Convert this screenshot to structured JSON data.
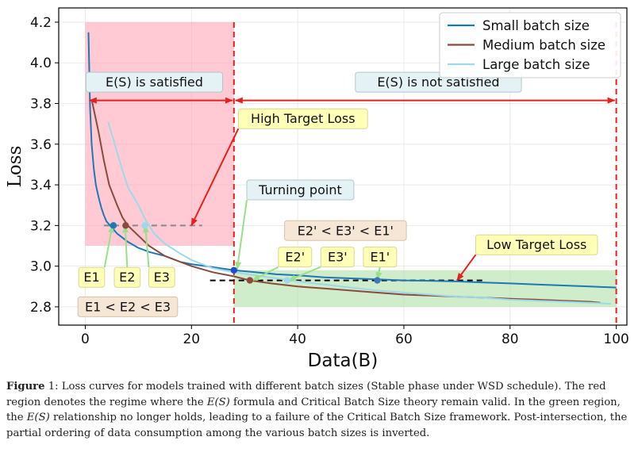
{
  "chart_data": {
    "type": "line",
    "xlabel": "Data(B)",
    "ylabel": "Loss",
    "xlim": [
      -5,
      102
    ],
    "ylim": [
      2.71,
      4.27
    ],
    "xticks": [
      0,
      20,
      40,
      60,
      80,
      100
    ],
    "yticks": [
      2.8,
      3.0,
      3.2,
      3.4,
      3.6,
      3.8,
      4.0,
      4.2
    ],
    "ytick_labels": [
      "2.8",
      "3.0",
      "3.2",
      "3.4",
      "3.6",
      "3.8",
      "4.0",
      "4.2"
    ],
    "grid": true,
    "legend_position": "top-right",
    "series": [
      {
        "name": "Small batch size",
        "color": "#1f77b4",
        "x": [
          0.6,
          0.9,
          1.2,
          1.6,
          2,
          2.5,
          3,
          3.5,
          4,
          5,
          6,
          7,
          8,
          10,
          12,
          15,
          18,
          20,
          24,
          28,
          32,
          36,
          40,
          45,
          50,
          55,
          60,
          65,
          70,
          75,
          80,
          85,
          90,
          95,
          100
        ],
        "y": [
          4.15,
          3.78,
          3.6,
          3.48,
          3.4,
          3.34,
          3.29,
          3.25,
          3.22,
          3.19,
          3.16,
          3.14,
          3.12,
          3.09,
          3.07,
          3.05,
          3.02,
          3.01,
          2.995,
          2.98,
          2.97,
          2.96,
          2.955,
          2.945,
          2.94,
          2.935,
          2.93,
          2.928,
          2.925,
          2.92,
          2.915,
          2.91,
          2.905,
          2.9,
          2.895
        ]
      },
      {
        "name": "Medium batch size",
        "color": "#8c4a3c",
        "x": [
          1.2,
          2.5,
          3.5,
          4.5,
          6,
          7,
          8,
          10,
          12,
          15,
          18,
          20,
          24,
          28,
          31,
          35,
          40,
          45,
          50,
          55,
          60,
          65,
          70,
          75,
          80,
          85,
          90,
          95,
          97
        ],
        "y": [
          3.82,
          3.66,
          3.52,
          3.4,
          3.3,
          3.24,
          3.2,
          3.15,
          3.1,
          3.05,
          3.02,
          3.0,
          2.97,
          2.95,
          2.93,
          2.915,
          2.9,
          2.89,
          2.88,
          2.87,
          2.86,
          2.855,
          2.85,
          2.845,
          2.84,
          2.835,
          2.83,
          2.825,
          2.82
        ]
      },
      {
        "name": "Large batch size",
        "color": "#9dd9ea",
        "x": [
          4.3,
          5,
          6,
          7,
          8,
          10,
          11.5,
          13,
          15,
          18,
          20,
          24,
          28,
          32,
          36,
          40,
          45,
          50,
          55,
          60,
          65,
          70,
          75,
          80,
          85,
          90,
          95,
          99
        ],
        "y": [
          3.71,
          3.65,
          3.56,
          3.47,
          3.39,
          3.3,
          3.22,
          3.16,
          3.11,
          3.06,
          3.03,
          2.99,
          2.97,
          2.955,
          2.94,
          2.925,
          2.91,
          2.895,
          2.88,
          2.87,
          2.86,
          2.85,
          2.845,
          2.835,
          2.83,
          2.825,
          2.82,
          2.815
        ]
      }
    ],
    "points": [
      {
        "x": 5.3,
        "y": 3.2,
        "color": "#1f77b4"
      },
      {
        "x": 7.6,
        "y": 3.2,
        "color": "#8c4a3c"
      },
      {
        "x": 11.2,
        "y": 3.2,
        "color": "#9dd9ea"
      },
      {
        "x": 28.0,
        "y": 2.98,
        "color": "#1f4fcf"
      },
      {
        "x": 31.0,
        "y": 2.93,
        "color": "#8c4a3c"
      },
      {
        "x": 38.0,
        "y": 2.93,
        "color": "#9dd9ea"
      },
      {
        "x": 55.0,
        "y": 2.93,
        "color": "#3a7ab8"
      }
    ],
    "regions": [
      {
        "name": "red",
        "x0": 0,
        "x1": 28,
        "y0": 3.1,
        "y1": 4.2,
        "color": "#ff9fb0",
        "opacity": 0.55
      },
      {
        "name": "green",
        "x0": 28,
        "x1": 100,
        "y0": 2.8,
        "y1": 2.98,
        "color": "#a8dca0",
        "opacity": 0.55
      }
    ],
    "vlines": [
      28,
      100
    ],
    "hlines": [
      {
        "x0": 3.5,
        "x1": 22,
        "y": 3.2,
        "color": "#888888"
      },
      {
        "x0": 23.5,
        "x1": 75,
        "y": 2.93,
        "color": "#000000"
      }
    ],
    "arrows": [
      {
        "name": "satisfied-arrow",
        "x0": 0.5,
        "x1": 28,
        "y": 3.815
      },
      {
        "name": "not-satisfied-arrow",
        "x0": 28,
        "x1": 100,
        "y": 3.815
      }
    ],
    "annotations": [
      {
        "name": "label-satisfied",
        "text": "E(S) is satisfied",
        "x": 13,
        "y": 3.905,
        "style": "blue"
      },
      {
        "name": "label-not-satisfied",
        "text": "E(S) is not satisfied",
        "x": 66.5,
        "y": 3.905,
        "style": "blue"
      },
      {
        "name": "label-high-target",
        "text": "High Target Loss",
        "x": 41,
        "y": 3.725,
        "style": "yellow",
        "arrow": {
          "x": 20,
          "y": 3.2,
          "color": "#e8201c"
        }
      },
      {
        "name": "label-turning-point",
        "text": "Turning point",
        "x": 40.5,
        "y": 3.375,
        "style": "blue",
        "arrow": {
          "x": 28.6,
          "y": 2.985,
          "color": "#98e08a"
        }
      },
      {
        "name": "label-order-after",
        "text": "E2' < E3' < E1'",
        "x": 49,
        "y": 3.175,
        "style": "tan"
      },
      {
        "name": "label-e2p",
        "text": "E2'",
        "x": 39.5,
        "y": 3.045,
        "style": "yellow",
        "arrow": {
          "x": 31.5,
          "y": 2.93,
          "color": "#98e08a"
        }
      },
      {
        "name": "label-e3p",
        "text": "E3'",
        "x": 47.5,
        "y": 3.045,
        "style": "yellow",
        "arrow": {
          "x": 38.3,
          "y": 2.93,
          "color": "#98e08a"
        }
      },
      {
        "name": "label-e1p",
        "text": "E1'",
        "x": 55.5,
        "y": 3.045,
        "style": "yellow",
        "arrow": {
          "x": 55,
          "y": 2.935,
          "color": "#98e08a"
        }
      },
      {
        "name": "label-low-target",
        "text": "Low Target Loss",
        "x": 85,
        "y": 3.105,
        "style": "yellow",
        "arrow": {
          "x": 70,
          "y": 2.93,
          "color": "#e8201c"
        }
      },
      {
        "name": "label-e1",
        "text": "E1",
        "x": 1.2,
        "y": 2.945,
        "style": "yellow",
        "arrow": {
          "x": 5.1,
          "y": 3.2,
          "color": "#98e08a"
        }
      },
      {
        "name": "label-e2",
        "text": "E2",
        "x": 7.9,
        "y": 2.945,
        "style": "yellow",
        "arrow": {
          "x": 7.5,
          "y": 3.2,
          "color": "#98e08a"
        }
      },
      {
        "name": "label-e3",
        "text": "E3",
        "x": 14.4,
        "y": 2.945,
        "style": "yellow",
        "arrow": {
          "x": 11.3,
          "y": 3.2,
          "color": "#98e08a"
        }
      },
      {
        "name": "label-order-before",
        "text": "E1 < E2 < E3",
        "x": 8,
        "y": 2.8,
        "style": "tan"
      }
    ]
  },
  "caption": {
    "figure_label": "Figure",
    "figure_number": "1",
    "part1": ": Loss curves for models trained with different batch sizes (Stable phase under WSD schedule). The red region denotes the regime where the ",
    "math1": "E(S)",
    "part2": " formula and Critical Batch Size theory remain valid. In the green region, the ",
    "math2": "E(S)",
    "part3": " relationship no longer holds, leading to a failure of the Critical Batch Size framework. Post-intersection, the partial ordering of data consumption among the various batch sizes is inverted."
  },
  "colors": {
    "red_region": "#ff9fb0",
    "green_region": "#a8dca0",
    "red_dashed": "#e8201c",
    "annot_yellow": "#ffffb8",
    "annot_blue": "#e4f2f5",
    "annot_tan": "#f5e6d6"
  }
}
